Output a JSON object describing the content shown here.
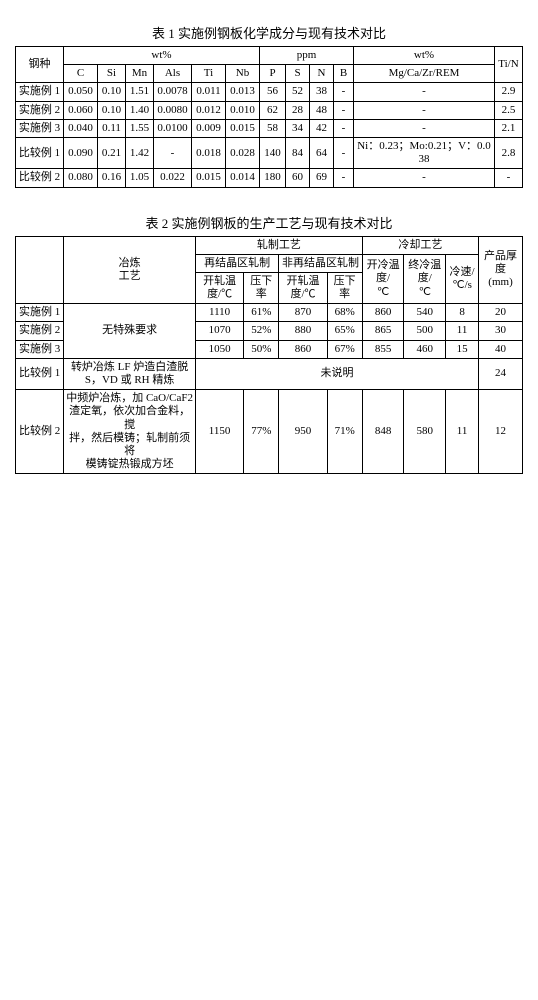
{
  "table1": {
    "caption": "表 1 实施例钢板化学成分与现有技术对比",
    "h_steel": "钢种",
    "h_wt1": "wt%",
    "h_ppm": "ppm",
    "h_wt2": "wt%",
    "h_tin": "Ti/N",
    "cols": {
      "c": "C",
      "si": "Si",
      "mn": "Mn",
      "als": "Als",
      "ti": "Ti",
      "nb": "Nb",
      "p": "P",
      "s": "S",
      "n": "N",
      "b": "B",
      "mg": "Mg/Ca/Zr/REM"
    },
    "rows": [
      {
        "name": "实施例 1",
        "c": "0.050",
        "si": "0.10",
        "mn": "1.51",
        "als": "0.0078",
        "ti": "0.011",
        "nb": "0.013",
        "p": "56",
        "s": "52",
        "n": "38",
        "b": "-",
        "mg": "-",
        "tin": "2.9"
      },
      {
        "name": "实施例 2",
        "c": "0.060",
        "si": "0.10",
        "mn": "1.40",
        "als": "0.0080",
        "ti": "0.012",
        "nb": "0.010",
        "p": "62",
        "s": "28",
        "n": "48",
        "b": "-",
        "mg": "-",
        "tin": "2.5"
      },
      {
        "name": "实施例 3",
        "c": "0.040",
        "si": "0.11",
        "mn": "1.55",
        "als": "0.0100",
        "ti": "0.009",
        "nb": "0.015",
        "p": "58",
        "s": "34",
        "n": "42",
        "b": "-",
        "mg": "-",
        "tin": "2.1"
      },
      {
        "name": "比较例 1",
        "c": "0.090",
        "si": "0.21",
        "mn": "1.42",
        "als": "-",
        "ti": "0.018",
        "nb": "0.028",
        "p": "140",
        "s": "84",
        "n": "64",
        "b": "-",
        "mg": "Ni：0.23；Mo:0.21；V：0.038",
        "tin": "2.8"
      },
      {
        "name": "比较例 2",
        "c": "0.080",
        "si": "0.16",
        "mn": "1.05",
        "als": "0.022",
        "ti": "0.015",
        "nb": "0.014",
        "p": "180",
        "s": "60",
        "n": "69",
        "b": "-",
        "mg": "-",
        "tin": "-"
      }
    ]
  },
  "table2": {
    "caption": "表 2 实施例钢板的生产工艺与现有技术对比",
    "h_smelt": "冶炼\n工艺",
    "h_roll": "轧制工艺",
    "h_cool": "冷却工艺",
    "h_thick": "产品厚度\n(mm)",
    "h_recry": "再结晶区轧制",
    "h_nonrecry": "非再结晶区轧制",
    "h_open1": "开轧温度/℃",
    "h_red1": "压下率",
    "h_open2": "开轧温度/℃",
    "h_red2": "压下率",
    "h_startc": "开冷温度/\n℃",
    "h_endc": "终冷温度/\n℃",
    "h_rate": "冷速/\n℃/s",
    "smelt_ex": "无特殊要求",
    "smelt_c1": "转炉冶炼 LF 炉造白渣脱\nS，VD 或 RH 精炼",
    "smelt_c2": "中频炉冶炼，加 CaO/CaF2\n渣定氧，依次加合金料，搅\n拌，然后模铸；轧制前须将\n模铸锭热锻成方坯",
    "unspec": "未说明",
    "rows_ex": [
      {
        "name": "实施例 1",
        "o1": "1110",
        "r1": "61%",
        "o2": "870",
        "r2": "68%",
        "sc": "860",
        "ec": "540",
        "rate": "8",
        "th": "20"
      },
      {
        "name": "实施例 2",
        "o1": "1070",
        "r1": "52%",
        "o2": "880",
        "r2": "65%",
        "sc": "865",
        "ec": "500",
        "rate": "11",
        "th": "30"
      },
      {
        "name": "实施例 3",
        "o1": "1050",
        "r1": "50%",
        "o2": "860",
        "r2": "67%",
        "sc": "855",
        "ec": "460",
        "rate": "15",
        "th": "40"
      }
    ],
    "row_c1": {
      "name": "比较例 1",
      "th": "24"
    },
    "row_c2": {
      "name": "比较例 2",
      "o1": "1150",
      "r1": "77%",
      "o2": "950",
      "r2": "71%",
      "sc": "848",
      "ec": "580",
      "rate": "11",
      "th": "12"
    }
  }
}
